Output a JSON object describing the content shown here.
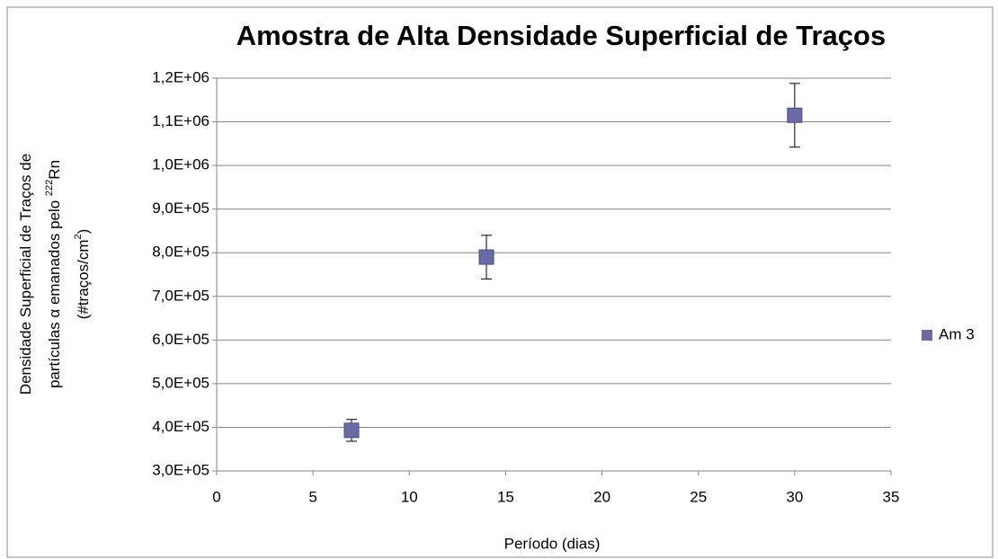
{
  "chart_data": {
    "type": "scatter",
    "title": "Amostra de Alta Densidade Superficial de Traços",
    "xlabel": "Período (dias)",
    "ylabel": [
      "Densidade Superficial de Traços de",
      "partículas ",
      "α",
      " emanados pelo ",
      "222",
      "Rn",
      "(#traços/cm",
      "2",
      ")"
    ],
    "series": [
      {
        "name": "Am 3",
        "color": "#6a6aa6",
        "x": [
          7,
          14,
          30
        ],
        "values": [
          393000,
          790000,
          1115000
        ],
        "errors": [
          25000,
          50000,
          73000
        ]
      }
    ],
    "xlim": [
      0,
      35
    ],
    "xticks": [
      0,
      5,
      10,
      15,
      20,
      25,
      30,
      35
    ],
    "ylim": [
      300000,
      1200000
    ],
    "yticks": [
      {
        "value": 300000,
        "label": "3,0E+05"
      },
      {
        "value": 400000,
        "label": "4,0E+05"
      },
      {
        "value": 500000,
        "label": "5,0E+05"
      },
      {
        "value": 600000,
        "label": "6,0E+05"
      },
      {
        "value": 700000,
        "label": "7,0E+05"
      },
      {
        "value": 800000,
        "label": "8,0E+05"
      },
      {
        "value": 900000,
        "label": "9,0E+05"
      },
      {
        "value": 1000000,
        "label": "1,0E+06"
      },
      {
        "value": 1100000,
        "label": "1,1E+06"
      },
      {
        "value": 1200000,
        "label": "1,2E+06"
      }
    ],
    "grid": true,
    "legend": "right"
  }
}
